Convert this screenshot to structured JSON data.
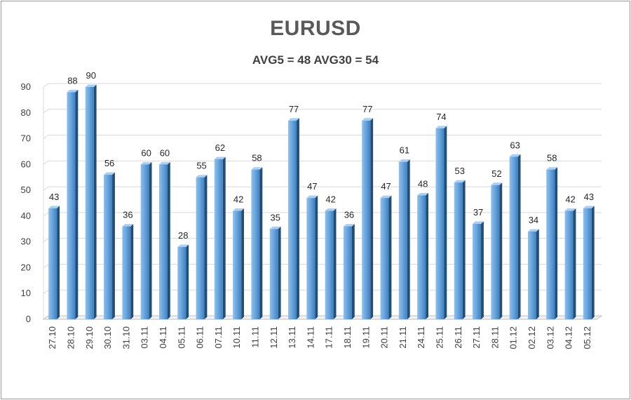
{
  "chart_data": {
    "type": "bar",
    "title": "EURUSD",
    "subtitle": "AVG5 = 48 AVG30 = 54",
    "xlabel": "",
    "ylabel": "",
    "ylim": [
      0,
      90
    ],
    "yticks": [
      0,
      10,
      20,
      30,
      40,
      50,
      60,
      70,
      80,
      90
    ],
    "grid": true,
    "legend": "none",
    "categories": [
      "27.10",
      "28.10",
      "29.10",
      "30.10",
      "31.10",
      "03.11",
      "04.11",
      "05.11",
      "06.11",
      "07.11",
      "10.11",
      "11.11",
      "12.11",
      "13.11",
      "14.11",
      "17.11",
      "18.11",
      "19.11",
      "20.11",
      "21.11",
      "24.11",
      "25.11",
      "26.11",
      "27.11",
      "28.11",
      "01.12",
      "02.12",
      "03.12",
      "04.12",
      "05.12"
    ],
    "values": [
      43,
      88,
      90,
      56,
      36,
      60,
      60,
      28,
      55,
      62,
      42,
      58,
      35,
      77,
      47,
      42,
      36,
      77,
      47,
      61,
      48,
      74,
      53,
      37,
      52,
      63,
      34,
      58,
      42,
      43
    ],
    "colors": {
      "bar_light": "#a9cff2",
      "bar_mid": "#5b9bd5",
      "bar_dark": "#2e6fae",
      "bar_side": "#1f4e79",
      "grid": "#d9d9d9",
      "floor": "#bfbfbf"
    }
  }
}
